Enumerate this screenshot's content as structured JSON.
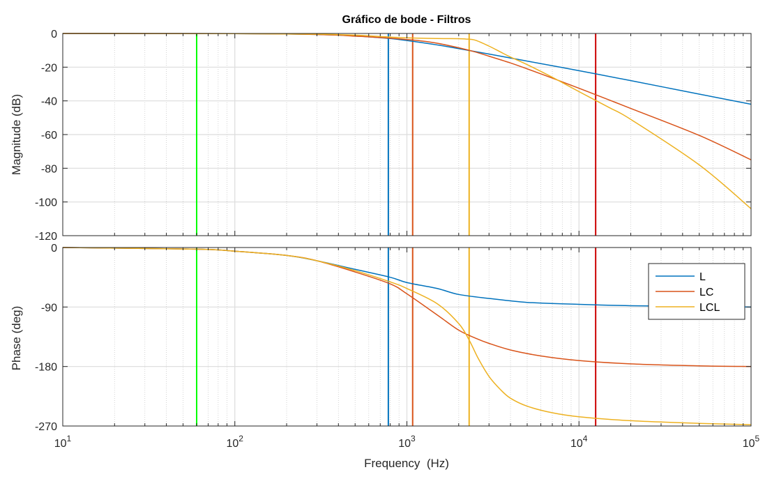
{
  "chart_data": [
    {
      "type": "line",
      "title": "Gráfico de bode - Filtros",
      "xlabel": "",
      "ylabel": "Magnitude (dB)",
      "xscale": "log",
      "xlim": [
        10,
        100000
      ],
      "ylim": [
        -120,
        0
      ],
      "yticks": [
        0,
        -20,
        -40,
        -60,
        -80,
        -100,
        -120
      ],
      "grid": true,
      "series": [
        {
          "name": "L",
          "color": "#0072BD",
          "x": [
            10,
            100,
            200,
            300,
            400,
            500,
            600,
            800,
            1000,
            1500,
            2000,
            3000,
            5000,
            10000,
            20000,
            50000,
            100000
          ],
          "y": [
            0,
            -0.1,
            -0.3,
            -0.6,
            -1.0,
            -1.5,
            -2.0,
            -3.0,
            -4.2,
            -6.8,
            -9.0,
            -12.2,
            -16.4,
            -22.1,
            -28.0,
            -36.0,
            -42.0
          ]
        },
        {
          "name": "LC",
          "color": "#D95319",
          "x": [
            10,
            100,
            200,
            300,
            400,
            500,
            600,
            800,
            1000,
            1200,
            1500,
            2000,
            2500,
            3000,
            4000,
            5000,
            7000,
            10000,
            15000,
            20000,
            50000,
            100000
          ],
          "y": [
            0,
            -0.1,
            -0.3,
            -0.6,
            -1.0,
            -1.6,
            -2.0,
            -2.8,
            -3.6,
            -4.4,
            -5.8,
            -8.5,
            -11.0,
            -13.5,
            -17.5,
            -21.0,
            -26.5,
            -32.5,
            -39.5,
            -44.5,
            -60.5,
            -75.0
          ]
        },
        {
          "name": "LCL",
          "color": "#EDB120",
          "x": [
            10,
            100,
            300,
            500,
            700,
            1000,
            1500,
            2000,
            2200,
            2500,
            3000,
            3500,
            4000,
            5000,
            7000,
            10000,
            15000,
            20000,
            50000,
            100000
          ],
          "y": [
            0,
            -0.1,
            -0.4,
            -1.0,
            -1.8,
            -2.6,
            -3.0,
            -3.1,
            -3.3,
            -4.0,
            -7.5,
            -11.0,
            -14.0,
            -18.5,
            -26.0,
            -34.5,
            -44.0,
            -51.0,
            -78.0,
            -104.0
          ]
        }
      ],
      "markers": [
        {
          "x": 60,
          "color": "#00FF00"
        },
        {
          "x": 780,
          "color": "#0072BD"
        },
        {
          "x": 1080,
          "color": "#D95319"
        },
        {
          "x": 2300,
          "color": "#EDB120"
        },
        {
          "x": 12500,
          "color": "#CC0000"
        }
      ]
    },
    {
      "type": "line",
      "title": "",
      "xlabel": "Frequency  (Hz)",
      "ylabel": "Phase (deg)",
      "xscale": "log",
      "xlim": [
        10,
        100000
      ],
      "ylim": [
        -270,
        0
      ],
      "yticks": [
        0,
        -90,
        -180,
        -270
      ],
      "xticks": [
        {
          "base": "10",
          "exp": "1"
        },
        {
          "base": "10",
          "exp": "2"
        },
        {
          "base": "10",
          "exp": "3"
        },
        {
          "base": "10",
          "exp": "4"
        },
        {
          "base": "10",
          "exp": "5"
        }
      ],
      "grid": true,
      "legend_position": "top-right",
      "series": [
        {
          "name": "L",
          "color": "#0072BD",
          "x": [
            10,
            60,
            100,
            200,
            300,
            500,
            800,
            1000,
            1500,
            2000,
            3000,
            5000,
            10000,
            20000,
            50000,
            100000
          ],
          "y": [
            0,
            -2.5,
            -5.5,
            -12,
            -20,
            -33,
            -45,
            -53,
            -62,
            -71,
            -77,
            -83,
            -86,
            -88,
            -89,
            -90
          ]
        },
        {
          "name": "LC",
          "color": "#D95319",
          "x": [
            10,
            60,
            100,
            200,
            300,
            500,
            800,
            1000,
            1500,
            2000,
            2500,
            3000,
            4000,
            6000,
            10000,
            20000,
            50000,
            100000
          ],
          "y": [
            0,
            -2.5,
            -5.5,
            -12,
            -20,
            -37,
            -55,
            -70,
            -102,
            -125,
            -137,
            -145,
            -155,
            -164,
            -171,
            -176,
            -179,
            -180
          ]
        },
        {
          "name": "LCL",
          "color": "#EDB120",
          "x": [
            10,
            60,
            100,
            200,
            300,
            500,
            800,
            1000,
            1500,
            2000,
            2300,
            2600,
            3000,
            3500,
            4000,
            5000,
            7000,
            10000,
            20000,
            50000,
            100000
          ],
          "y": [
            0,
            -2.5,
            -5.5,
            -12,
            -20,
            -35,
            -52,
            -62,
            -85,
            -115,
            -140,
            -168,
            -195,
            -215,
            -228,
            -240,
            -250,
            -256,
            -262,
            -266,
            -268
          ]
        }
      ],
      "markers": [
        {
          "x": 60,
          "color": "#00FF00"
        },
        {
          "x": 780,
          "color": "#0072BD"
        },
        {
          "x": 1080,
          "color": "#D95319"
        },
        {
          "x": 2300,
          "color": "#EDB120"
        },
        {
          "x": 12500,
          "color": "#CC0000"
        }
      ]
    }
  ]
}
